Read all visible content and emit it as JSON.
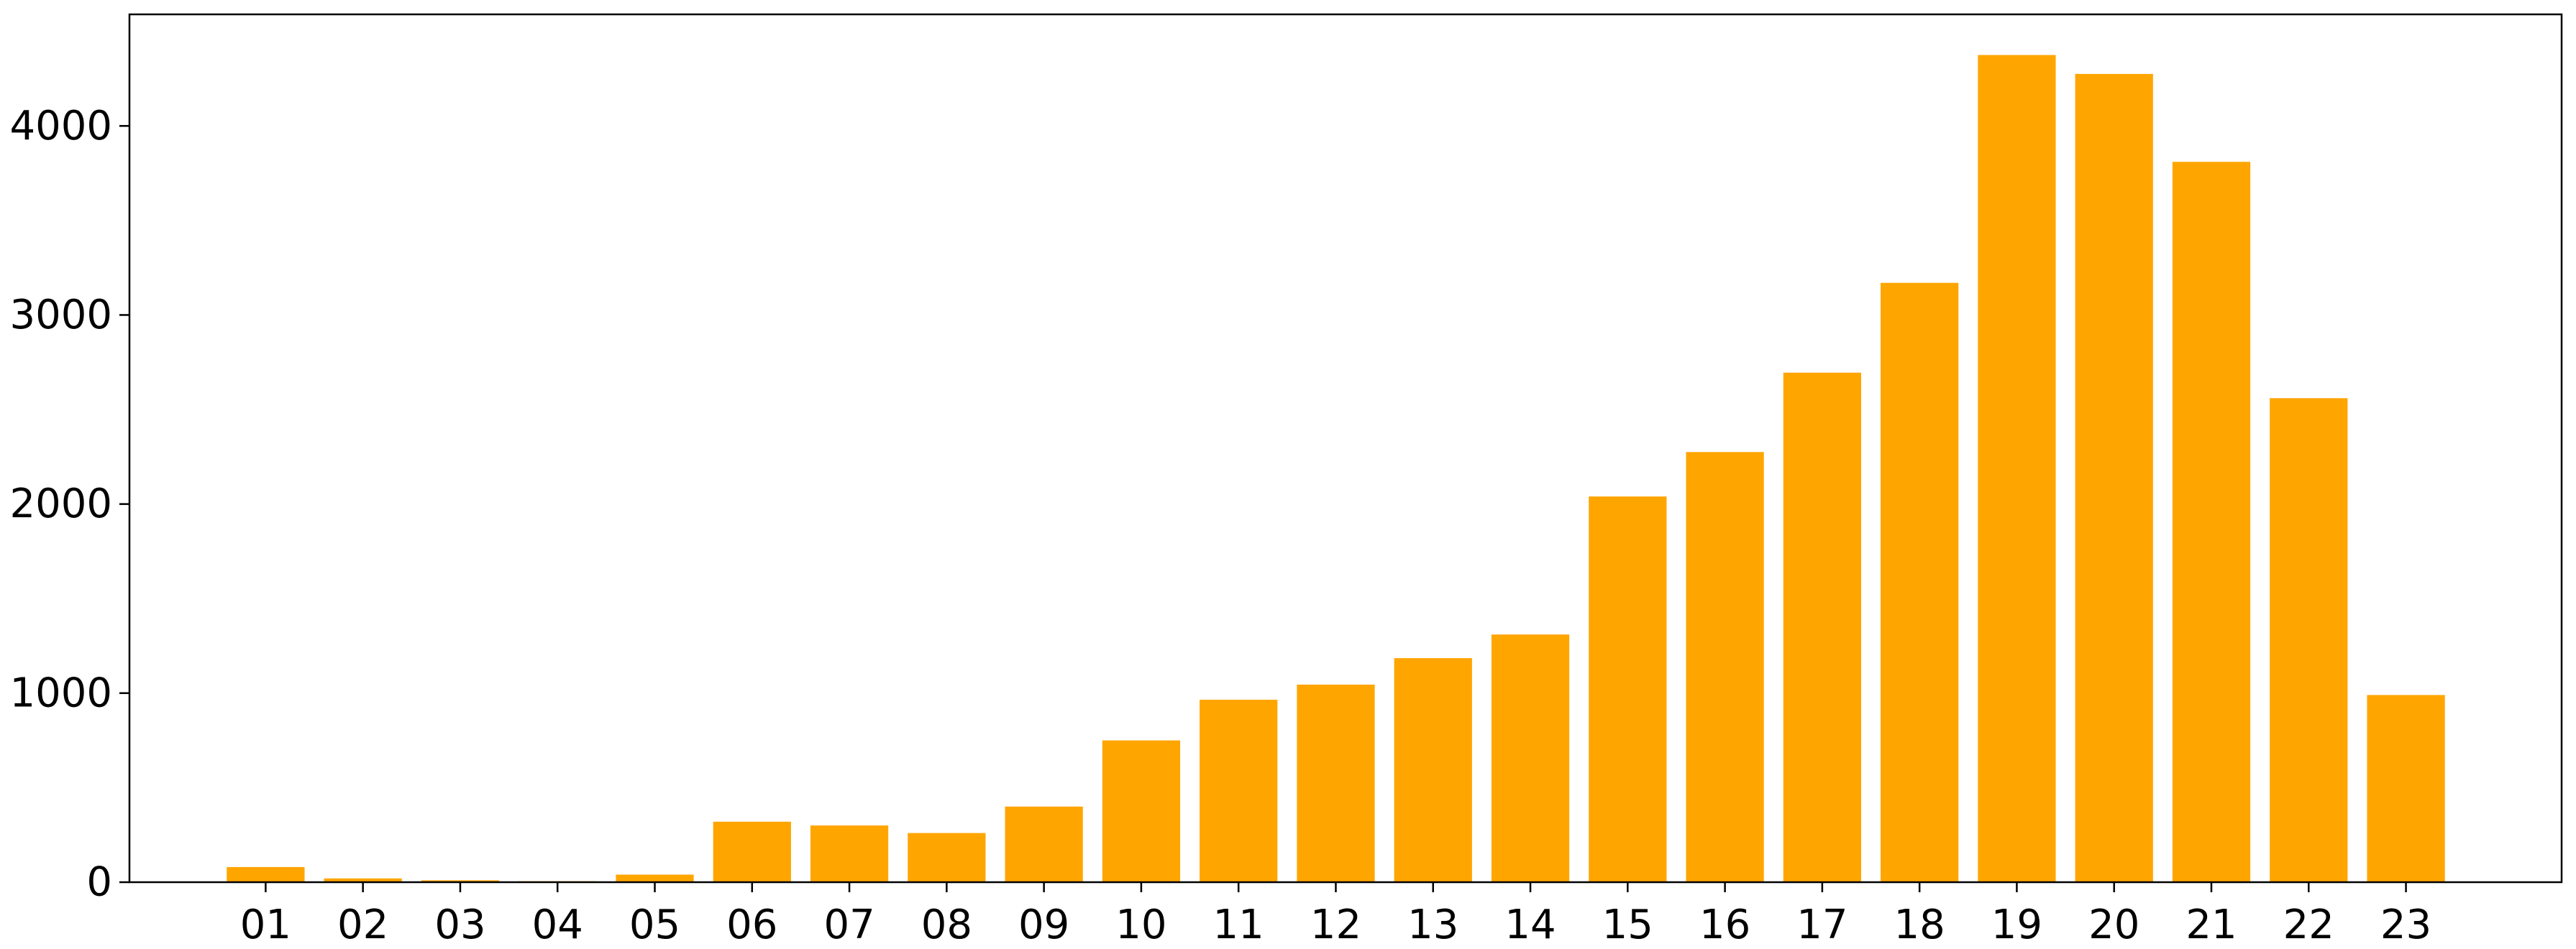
{
  "chart_data": {
    "type": "bar",
    "title": "",
    "xlabel": "",
    "ylabel": "",
    "categories": [
      "01",
      "02",
      "03",
      "04",
      "05",
      "06",
      "07",
      "08",
      "09",
      "10",
      "11",
      "12",
      "13",
      "14",
      "15",
      "16",
      "17",
      "18",
      "19",
      "20",
      "21",
      "22",
      "23"
    ],
    "values": [
      80,
      20,
      10,
      5,
      40,
      320,
      300,
      260,
      400,
      750,
      965,
      1045,
      1185,
      1310,
      2040,
      2275,
      2695,
      3170,
      4375,
      4275,
      3810,
      2560,
      990
    ],
    "ylim": [
      0,
      4590
    ],
    "xlim": [
      -1.4,
      23.6
    ],
    "yticks": [
      0,
      1000,
      2000,
      3000,
      4000
    ],
    "bar_color": "#FFA500",
    "grid": false,
    "legend": "none"
  }
}
